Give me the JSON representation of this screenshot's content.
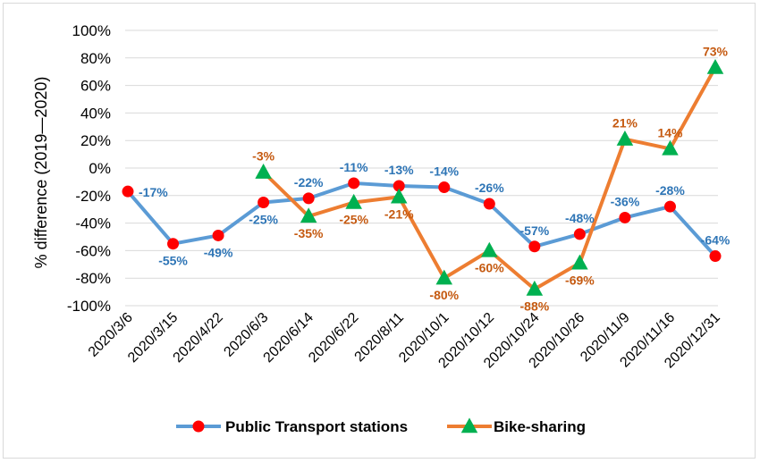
{
  "chart_data": {
    "type": "line",
    "ylabel": "% difference (2019—2020)",
    "xlabel": "",
    "ylim": [
      -100,
      100
    ],
    "ytick_step": 20,
    "ytick_labels": [
      "100%",
      "80%",
      "60%",
      "40%",
      "20%",
      "0%",
      "-20%",
      "-40%",
      "-60%",
      "-80%",
      "-100%"
    ],
    "categories": [
      "2020/3/6",
      "2020/3/15",
      "2020/4/22",
      "2020/6/3",
      "2020/6/14",
      "2020/6/22",
      "2020/8/11",
      "2020/10/1",
      "2020/10/12",
      "2020/10/24",
      "2020/10/26",
      "2020/11/9",
      "2020/11/16",
      "2020/12/31"
    ],
    "grid": "horizontal",
    "legend_position": "bottom",
    "series": [
      {
        "name": "Public Transport stations",
        "line_color": "#5b9bd5",
        "marker": "circle",
        "marker_color": "#ff0000",
        "label_color": "#2e75b6",
        "values": [
          -17,
          -55,
          -49,
          -25,
          -22,
          -11,
          -13,
          -14,
          -26,
          -57,
          -48,
          -36,
          -28,
          -64
        ],
        "labels": [
          "-17%",
          "-55%",
          "-49%",
          "-25%",
          "-22%",
          "-11%",
          "-13%",
          "-14%",
          "-26%",
          "-57%",
          "-48%",
          "-36%",
          "-28%",
          "-64%"
        ],
        "label_pos": [
          "right",
          "below",
          "below",
          "below",
          "above",
          "above",
          "above",
          "above",
          "above",
          "above",
          "above",
          "above",
          "above",
          "above"
        ]
      },
      {
        "name": "Bike-sharing",
        "line_color": "#ed7d31",
        "marker": "triangle",
        "marker_color": "#00b050",
        "label_color": "#c55a11",
        "values": [
          null,
          null,
          null,
          -3,
          -35,
          -25,
          -21,
          -80,
          -60,
          -88,
          -69,
          21,
          14,
          73
        ],
        "labels": [
          null,
          null,
          null,
          "-3%",
          "-35%",
          "-25%",
          "-21%",
          "-80%",
          "-60%",
          "-88%",
          "-69%",
          "21%",
          "14%",
          "73%"
        ],
        "label_pos": [
          null,
          null,
          null,
          "above",
          "below",
          "below",
          "below",
          "below",
          "below",
          "below",
          "below",
          "above",
          "above",
          "above"
        ]
      }
    ]
  }
}
